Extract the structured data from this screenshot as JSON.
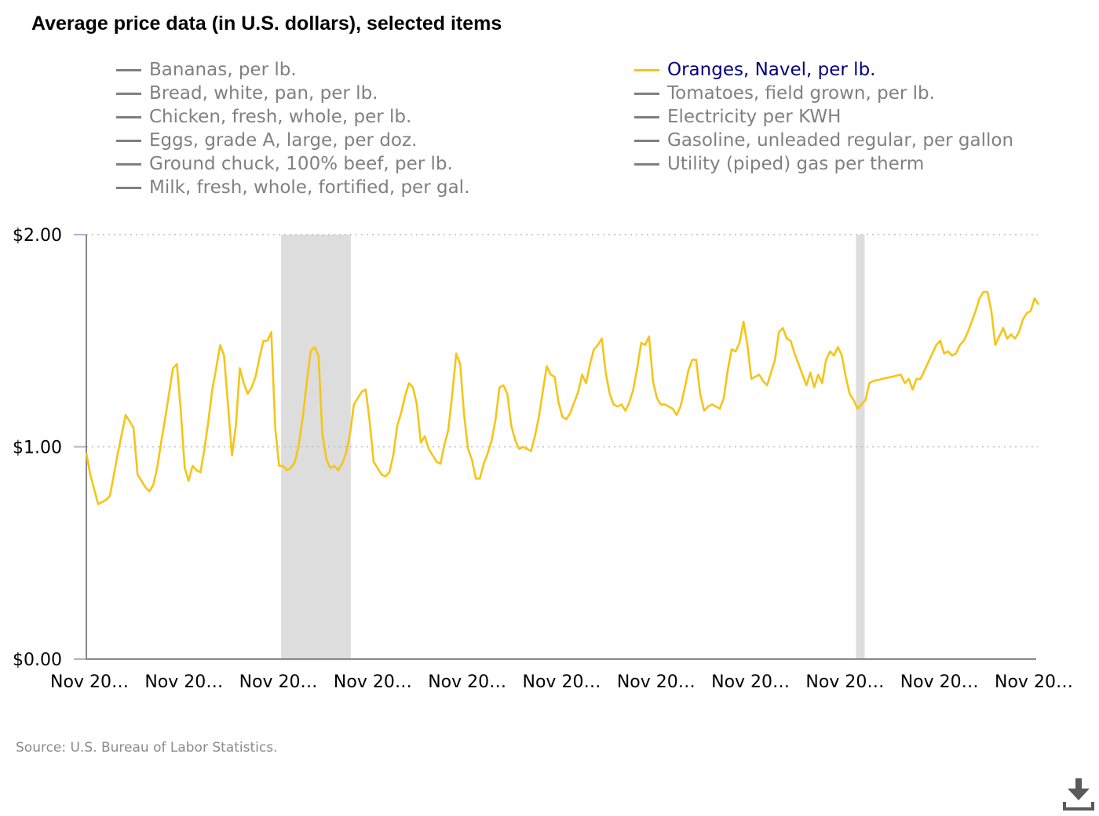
{
  "title": "Average price data (in U.S. dollars), selected items",
  "legend": {
    "column1": [
      {
        "label": "Bananas, per lb.",
        "active": false
      },
      {
        "label": "Bread, white, pan, per lb.",
        "active": false
      },
      {
        "label": "Chicken, fresh, whole, per lb.",
        "active": false
      },
      {
        "label": "Eggs, grade A, large, per doz.",
        "active": false
      },
      {
        "label": "Ground chuck, 100% beef, per lb.",
        "active": false
      },
      {
        "label": "Milk, fresh, whole, fortified, per gal.",
        "active": false
      }
    ],
    "column2": [
      {
        "label": "Oranges, Navel, per lb.",
        "active": true
      },
      {
        "label": "Tomatoes, field grown, per lb.",
        "active": false
      },
      {
        "label": "Electricity per KWH",
        "active": false
      },
      {
        "label": "Gasoline, unleaded regular, per gallon",
        "active": false
      },
      {
        "label": "Utility (piped) gas per therm",
        "active": false
      }
    ]
  },
  "source": "Source: U.S. Bureau of Labor Statistics.",
  "download_icon": "download-icon",
  "colors": {
    "series": "#f5c518",
    "active_legend_text": "#000080",
    "inactive": "#808080",
    "recession": "#dddddd",
    "grid": "#bbbbbb"
  },
  "chart_data": {
    "type": "line",
    "title": "Average price data (in U.S. dollars), selected items",
    "ylim": [
      0,
      2
    ],
    "y_ticks": [
      {
        "value": 0,
        "label": "$0.00"
      },
      {
        "value": 1,
        "label": "$1.00"
      },
      {
        "value": 2,
        "label": "$2.00"
      }
    ],
    "xlim": [
      0,
      241
    ],
    "x_ticks": [
      {
        "value": 0,
        "label": "Nov 20…"
      },
      {
        "value": 24,
        "label": "Nov 20…"
      },
      {
        "value": 48,
        "label": "Nov 20…"
      },
      {
        "value": 72,
        "label": "Nov 20…"
      },
      {
        "value": 96,
        "label": "Nov 20…"
      },
      {
        "value": 120,
        "label": "Nov 20…"
      },
      {
        "value": 144,
        "label": "Nov 20…"
      },
      {
        "value": 168,
        "label": "Nov 20…"
      },
      {
        "value": 192,
        "label": "Nov 20…"
      },
      {
        "value": 216,
        "label": "Nov 20…"
      },
      {
        "value": 240,
        "label": "Nov 20…"
      }
    ],
    "shaded_regions": [
      {
        "start": 49.5,
        "end": 67.2
      },
      {
        "start": 195.6,
        "end": 197.8
      }
    ],
    "series": [
      {
        "name": "Oranges, Navel, per lb.",
        "points": [
          [
            0,
            0.97
          ],
          [
            1,
            0.87
          ],
          [
            2,
            0.8
          ],
          [
            3,
            0.73
          ],
          [
            4,
            0.74
          ],
          [
            5,
            0.75
          ],
          [
            6,
            0.77
          ],
          [
            7,
            0.87
          ],
          [
            8,
            0.97
          ],
          [
            9,
            1.06
          ],
          [
            10,
            1.15
          ],
          [
            11,
            1.12
          ],
          [
            12,
            1.09
          ],
          [
            13,
            0.87
          ],
          [
            14,
            0.84
          ],
          [
            15,
            0.81
          ],
          [
            16,
            0.79
          ],
          [
            17,
            0.82
          ],
          [
            18,
            0.9
          ],
          [
            19,
            1.02
          ],
          [
            20,
            1.13
          ],
          [
            21,
            1.25
          ],
          [
            22,
            1.37
          ],
          [
            23,
            1.39
          ],
          [
            24,
            1.17
          ],
          [
            25,
            0.9
          ],
          [
            26,
            0.84
          ],
          [
            27,
            0.91
          ],
          [
            28,
            0.89
          ],
          [
            29,
            0.88
          ],
          [
            30,
            0.99
          ],
          [
            31,
            1.12
          ],
          [
            32,
            1.27
          ],
          [
            33,
            1.37
          ],
          [
            34,
            1.48
          ],
          [
            35,
            1.43
          ],
          [
            36,
            1.2
          ],
          [
            37,
            0.96
          ],
          [
            38,
            1.1
          ],
          [
            39,
            1.37
          ],
          [
            40,
            1.3
          ],
          [
            41,
            1.25
          ],
          [
            42,
            1.28
          ],
          [
            43,
            1.33
          ],
          [
            44,
            1.42
          ],
          [
            45,
            1.5
          ],
          [
            46,
            1.5
          ],
          [
            47,
            1.54
          ],
          [
            48,
            1.09
          ],
          [
            49,
            0.91
          ],
          [
            50,
            0.91
          ],
          [
            51,
            0.89
          ],
          [
            52,
            0.9
          ],
          [
            53,
            0.93
          ],
          [
            54,
            1.01
          ],
          [
            55,
            1.14
          ],
          [
            56,
            1.3
          ],
          [
            57,
            1.45
          ],
          [
            58,
            1.47
          ],
          [
            59,
            1.43
          ],
          [
            60,
            1.06
          ],
          [
            61,
            0.94
          ],
          [
            62,
            0.9
          ],
          [
            63,
            0.91
          ],
          [
            64,
            0.89
          ],
          [
            65,
            0.92
          ],
          [
            66,
            0.97
          ],
          [
            67,
            1.06
          ],
          [
            68,
            1.2
          ],
          [
            69,
            1.23
          ],
          [
            70,
            1.26
          ],
          [
            71,
            1.27
          ],
          [
            72,
            1.12
          ],
          [
            73,
            0.93
          ],
          [
            74,
            0.9
          ],
          [
            75,
            0.87
          ],
          [
            76,
            0.86
          ],
          [
            77,
            0.88
          ],
          [
            78,
            0.96
          ],
          [
            79,
            1.1
          ],
          [
            80,
            1.16
          ],
          [
            81,
            1.24
          ],
          [
            82,
            1.3
          ],
          [
            83,
            1.28
          ],
          [
            84,
            1.2
          ],
          [
            85,
            1.02
          ],
          [
            86,
            1.05
          ],
          [
            87,
            0.99
          ],
          [
            88,
            0.96
          ],
          [
            89,
            0.93
          ],
          [
            90,
            0.92
          ],
          [
            91,
            1.01
          ],
          [
            92,
            1.08
          ],
          [
            93,
            1.25
          ],
          [
            94,
            1.44
          ],
          [
            95,
            1.39
          ],
          [
            96,
            1.15
          ],
          [
            97,
            0.99
          ],
          [
            98,
            0.94
          ],
          [
            99,
            0.85
          ],
          [
            100,
            0.85
          ],
          [
            101,
            0.92
          ],
          [
            102,
            0.97
          ],
          [
            103,
            1.03
          ],
          [
            104,
            1.13
          ],
          [
            105,
            1.28
          ],
          [
            106,
            1.29
          ],
          [
            107,
            1.25
          ],
          [
            108,
            1.1
          ],
          [
            109,
            1.03
          ],
          [
            110,
            0.99
          ],
          [
            111,
            1.0
          ],
          [
            112,
            0.99
          ],
          [
            113,
            0.98
          ],
          [
            114,
            1.05
          ],
          [
            115,
            1.14
          ],
          [
            116,
            1.26
          ],
          [
            117,
            1.38
          ],
          [
            118,
            1.34
          ],
          [
            119,
            1.33
          ],
          [
            120,
            1.21
          ],
          [
            121,
            1.14
          ],
          [
            122,
            1.13
          ],
          [
            123,
            1.16
          ],
          [
            124,
            1.21
          ],
          [
            125,
            1.26
          ],
          [
            126,
            1.34
          ],
          [
            127,
            1.3
          ],
          [
            128,
            1.39
          ],
          [
            129,
            1.46
          ],
          [
            130,
            1.48
          ],
          [
            131,
            1.51
          ],
          [
            132,
            1.35
          ],
          [
            133,
            1.25
          ],
          [
            134,
            1.2
          ],
          [
            135,
            1.19
          ],
          [
            136,
            1.2
          ],
          [
            137,
            1.17
          ],
          [
            138,
            1.21
          ],
          [
            139,
            1.27
          ],
          [
            140,
            1.37
          ],
          [
            141,
            1.49
          ],
          [
            142,
            1.48
          ],
          [
            143,
            1.52
          ],
          [
            144,
            1.31
          ],
          [
            145,
            1.23
          ],
          [
            146,
            1.2
          ],
          [
            147,
            1.2
          ],
          [
            148,
            1.19
          ],
          [
            149,
            1.18
          ],
          [
            150,
            1.15
          ],
          [
            151,
            1.19
          ],
          [
            152,
            1.27
          ],
          [
            153,
            1.36
          ],
          [
            154,
            1.41
          ],
          [
            155,
            1.41
          ],
          [
            156,
            1.25
          ],
          [
            157,
            1.17
          ],
          [
            158,
            1.19
          ],
          [
            159,
            1.2
          ],
          [
            160,
            1.19
          ],
          [
            161,
            1.18
          ],
          [
            162,
            1.23
          ],
          [
            163,
            1.36
          ],
          [
            164,
            1.46
          ],
          [
            165,
            1.45
          ],
          [
            166,
            1.49
          ],
          [
            167,
            1.59
          ],
          [
            168,
            1.48
          ],
          [
            169,
            1.32
          ],
          [
            170,
            1.33
          ],
          [
            171,
            1.34
          ],
          [
            172,
            1.31
          ],
          [
            173,
            1.29
          ],
          [
            174,
            1.35
          ],
          [
            175,
            1.41
          ],
          [
            176,
            1.54
          ],
          [
            177,
            1.56
          ],
          [
            178,
            1.51
          ],
          [
            179,
            1.5
          ],
          [
            180,
            1.44
          ],
          [
            181,
            1.39
          ],
          [
            182,
            1.34
          ],
          [
            183,
            1.29
          ],
          [
            184,
            1.35
          ],
          [
            185,
            1.28
          ],
          [
            186,
            1.34
          ],
          [
            187,
            1.3
          ],
          [
            188,
            1.41
          ],
          [
            189,
            1.45
          ],
          [
            190,
            1.43
          ],
          [
            191,
            1.47
          ],
          [
            192,
            1.43
          ],
          [
            193,
            1.33
          ],
          [
            194,
            1.25
          ],
          [
            195,
            1.22
          ],
          [
            196,
            1.18
          ],
          [
            197,
            1.2
          ],
          [
            198,
            1.22
          ],
          [
            199,
            1.3
          ],
          [
            200,
            1.31
          ],
          [
            207,
            1.34
          ],
          [
            208,
            1.3
          ],
          [
            209,
            1.32
          ],
          [
            210,
            1.27
          ],
          [
            211,
            1.32
          ],
          [
            212,
            1.32
          ],
          [
            213,
            1.36
          ],
          [
            214,
            1.4
          ],
          [
            215,
            1.44
          ],
          [
            216,
            1.48
          ],
          [
            217,
            1.5
          ],
          [
            218,
            1.44
          ],
          [
            219,
            1.45
          ],
          [
            220,
            1.43
          ],
          [
            221,
            1.44
          ],
          [
            222,
            1.48
          ],
          [
            223,
            1.5
          ],
          [
            224,
            1.54
          ],
          [
            225,
            1.59
          ],
          [
            226,
            1.64
          ],
          [
            227,
            1.7
          ],
          [
            228,
            1.73
          ],
          [
            229,
            1.73
          ],
          [
            230,
            1.64
          ],
          [
            231,
            1.48
          ],
          [
            232,
            1.52
          ],
          [
            233,
            1.56
          ],
          [
            234,
            1.51
          ],
          [
            235,
            1.53
          ],
          [
            236,
            1.51
          ],
          [
            237,
            1.54
          ],
          [
            238,
            1.6
          ],
          [
            239,
            1.63
          ],
          [
            240,
            1.64
          ],
          [
            241,
            1.7
          ],
          [
            242,
            1.67
          ]
        ]
      }
    ]
  }
}
